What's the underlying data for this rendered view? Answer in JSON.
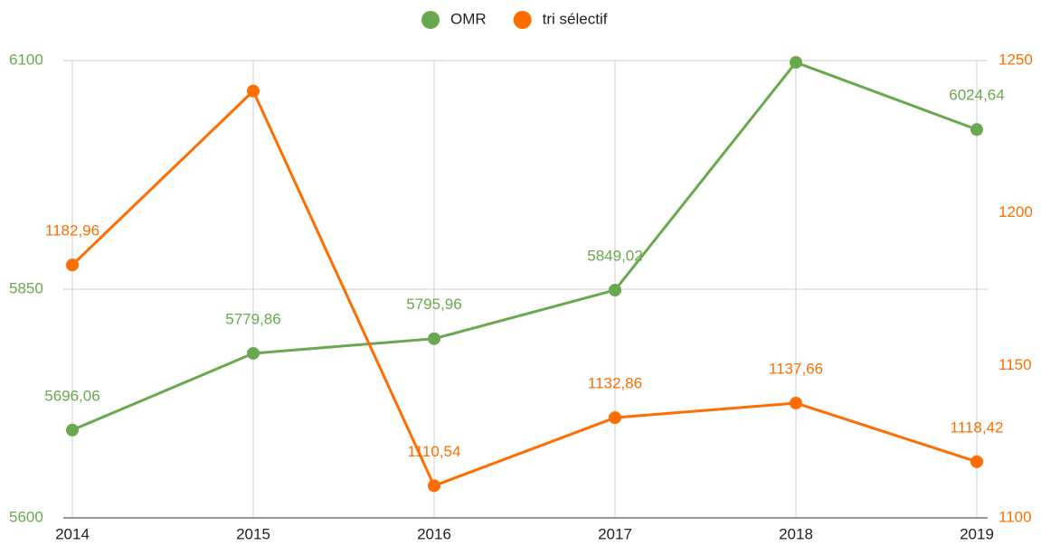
{
  "chart_data": {
    "type": "line",
    "categories": [
      "2014",
      "2015",
      "2016",
      "2017",
      "2018",
      "2019"
    ],
    "series": [
      {
        "name": "OMR",
        "color": "#6aa84f",
        "values": [
          5696.06,
          5779.86,
          5795.96,
          5849.02,
          6098,
          6024.64
        ],
        "value_labels": [
          "5696,06",
          "5779,86",
          "5795,96",
          "5849,02",
          null,
          "6024,64"
        ]
      },
      {
        "name": "tri sélectif",
        "color": "#ff6d00",
        "axis": "y2",
        "values": [
          1182.96,
          1240,
          1110.54,
          1132.86,
          1137.66,
          1118.42
        ],
        "value_labels": [
          "1182,96",
          null,
          "1110,54",
          "1132,86",
          "1137,66",
          "1118,42"
        ]
      }
    ],
    "ylim": [
      5600,
      6100
    ],
    "yticks": [
      5600,
      5850,
      6100
    ],
    "y2lim": [
      1100,
      1250
    ],
    "y2ticks": [
      1100,
      1150,
      1200,
      1250
    ],
    "grid": true,
    "legend": "top"
  }
}
